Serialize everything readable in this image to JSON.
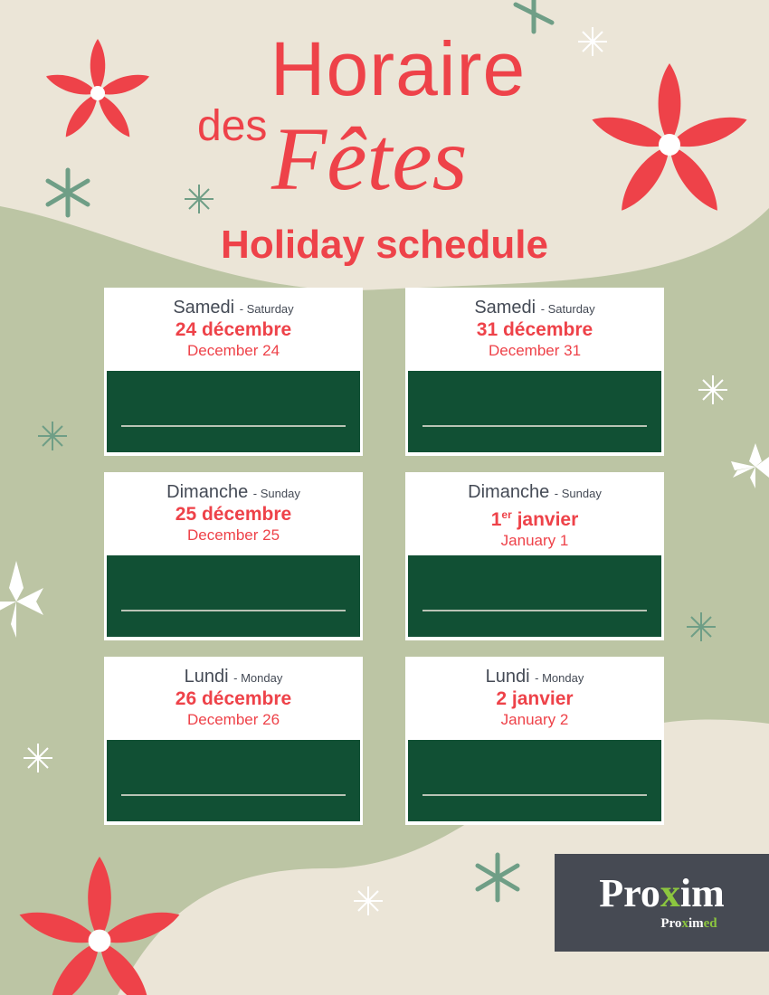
{
  "title": {
    "line1": "Horaire",
    "line2a": "des",
    "line2b": "Fêtes",
    "subtitle": "Holiday schedule"
  },
  "cards": [
    {
      "day_fr": "Samedi",
      "day_en": "- Saturday",
      "date_fr": "24 décembre",
      "date_en": "December 24"
    },
    {
      "day_fr": "Samedi",
      "day_en": "- Saturday",
      "date_fr": "31 décembre",
      "date_en": "December 31"
    },
    {
      "day_fr": "Dimanche",
      "day_en": "- Sunday",
      "date_fr": "25 décembre",
      "date_en": "December 25"
    },
    {
      "day_fr": "Dimanche",
      "day_en": "- Sunday",
      "date_fr_num": "1",
      "date_fr_sup": "er",
      "date_fr": " janvier",
      "date_en": "January 1"
    },
    {
      "day_fr": "Lundi",
      "day_en": "- Monday",
      "date_fr": "26 décembre",
      "date_en": "December 26"
    },
    {
      "day_fr": "Lundi",
      "day_en": "- Monday",
      "date_fr": "2 janvier",
      "date_en": "January 2"
    }
  ],
  "logo": {
    "main_a": "Pro",
    "main_x": "x",
    "main_b": "im",
    "sub_a": "Pro",
    "sub_x": "x",
    "sub_b": "im",
    "sub_c": "ed"
  },
  "colors": {
    "accent": "#ee4249",
    "box": "#115034",
    "background": "#ebe5d7",
    "blob": "#bcc5a4",
    "logo_bg": "#464a53",
    "logo_green": "#8cc63f"
  }
}
